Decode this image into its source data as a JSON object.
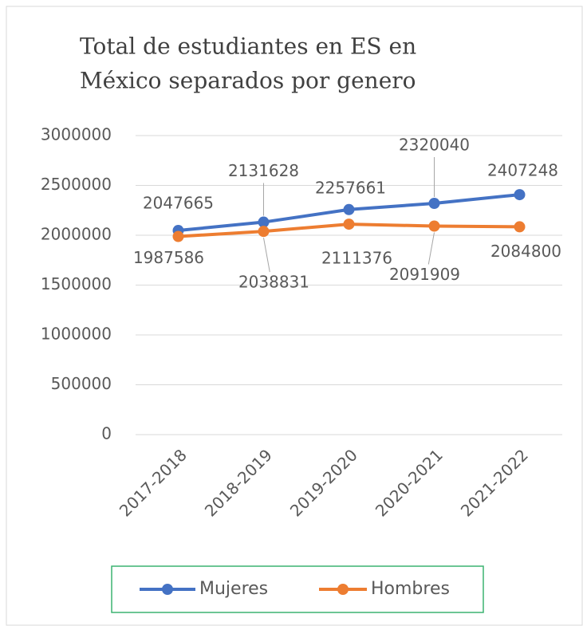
{
  "chart_data": {
    "type": "line",
    "title_lines": [
      "Total de estudiantes en ES en",
      "México separados por genero"
    ],
    "categories": [
      "2017-2018",
      "2018-2019",
      "2019-2020",
      "2020-2021",
      "2021-2022"
    ],
    "series": [
      {
        "name": "Mujeres",
        "color": "#4472c4",
        "values": [
          2047665,
          2131628,
          2257661,
          2320040,
          2407248
        ]
      },
      {
        "name": "Hombres",
        "color": "#ed7d31",
        "values": [
          1987586,
          2038831,
          2111376,
          2091909,
          2084800
        ]
      }
    ],
    "ylim": [
      0,
      3000000
    ],
    "yticks": [
      0,
      500000,
      1000000,
      1500000,
      2000000,
      2500000,
      3000000
    ],
    "grid": true,
    "legend": "bottom"
  }
}
